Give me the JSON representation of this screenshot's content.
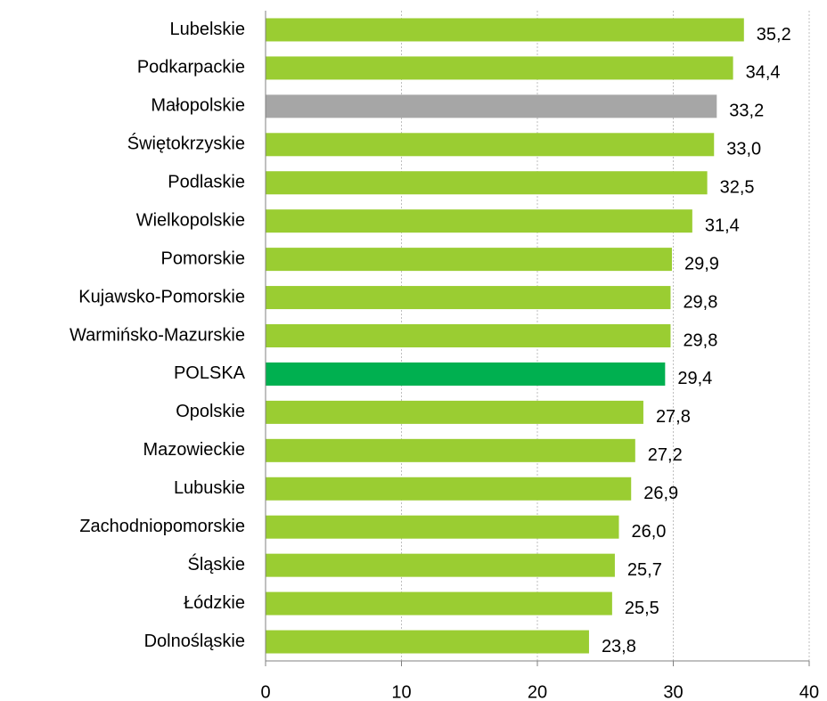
{
  "chart_data": {
    "type": "bar",
    "orientation": "horizontal",
    "categories": [
      "Lubelskie",
      "Podkarpackie",
      "Małopolskie",
      "Świętokrzyskie",
      "Podlaskie",
      "Wielkopolskie",
      "Pomorskie",
      "Kujawsko-Pomorskie",
      "Warmińsko-Mazurskie",
      "POLSKA",
      "Opolskie",
      "Mazowieckie",
      "Lubuskie",
      "Zachodniopomorskie",
      "Śląskie",
      "Łódzkie",
      "Dolnośląskie"
    ],
    "values": [
      35.2,
      34.4,
      33.2,
      33.0,
      32.5,
      31.4,
      29.9,
      29.8,
      29.8,
      29.4,
      27.8,
      27.2,
      26.9,
      26.0,
      25.7,
      25.5,
      23.8
    ],
    "value_labels": [
      "35,2",
      "34,4",
      "33,2",
      "33,0",
      "32,5",
      "31,4",
      "29,9",
      "29,8",
      "29,8",
      "29,4",
      "27,8",
      "27,2",
      "26,9",
      "26,0",
      "25,7",
      "25,5",
      "23,8"
    ],
    "colors": [
      "#9acd32",
      "#9acd32",
      "#a6a6a6",
      "#9acd32",
      "#9acd32",
      "#9acd32",
      "#9acd32",
      "#9acd32",
      "#9acd32",
      "#00b050",
      "#9acd32",
      "#9acd32",
      "#9acd32",
      "#9acd32",
      "#9acd32",
      "#9acd32",
      "#9acd32"
    ],
    "xlim": [
      0,
      40
    ],
    "xticks": [
      0,
      10,
      20,
      30,
      40
    ],
    "grid": true
  }
}
